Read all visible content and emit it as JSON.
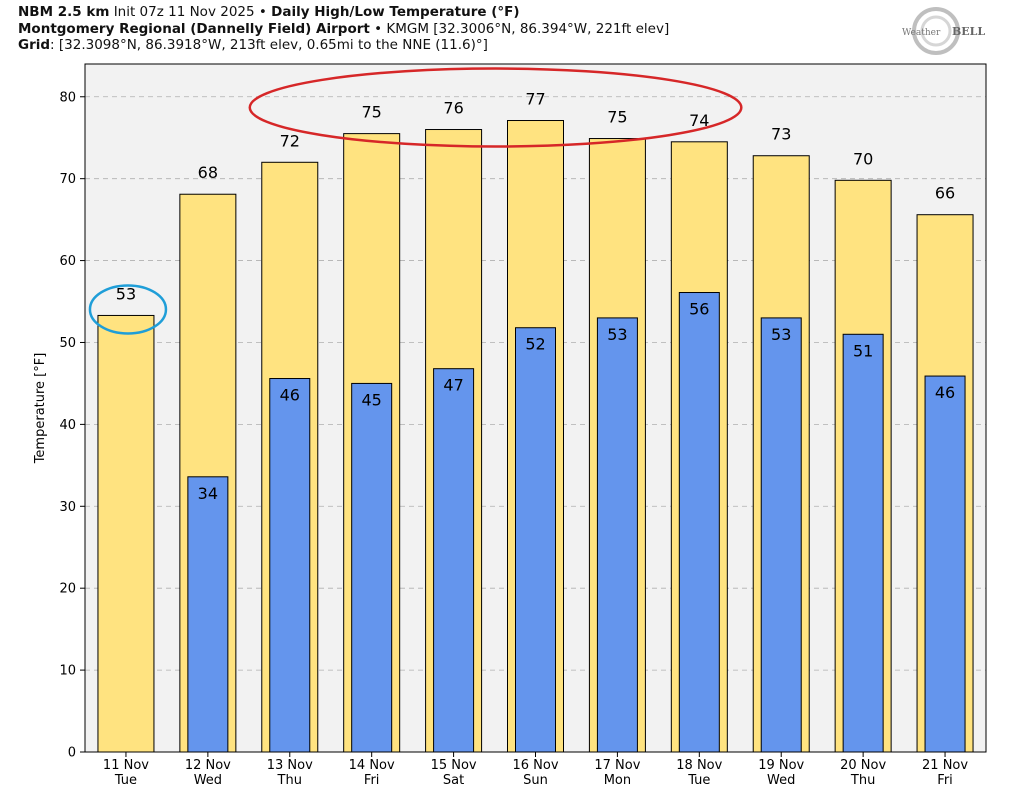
{
  "header": {
    "line1_bold": "NBM 2.5 km",
    "line1_init": "Init 07z 11 Nov 2025",
    "line1_sep": "•",
    "line1_title": "Daily High/Low Temperature (°F)",
    "line2_bold": "Montgomery Regional (Dannelly Field) Airport",
    "line2_sep": "•",
    "line2_rest": "KMGM [32.3006°N, 86.394°W, 221ft elev]",
    "line3_bold": "Grid",
    "line3_rest": ": [32.3098°N, 86.3918°W, 213ft elev, 0.65mi to the NNE (11.6)°]"
  },
  "logo": {
    "text_left": "Weather",
    "text_right": "BELL"
  },
  "colors": {
    "high": "#ffe380",
    "low": "#6495ed",
    "plot_bg": "#f2f2f2",
    "red_ellipse": "#d62728",
    "blue_ellipse": "#1f9ed8"
  },
  "chart_data": {
    "type": "bar",
    "title": "Daily High/Low Temperature (°F)",
    "ylabel": "Temperature [°F]",
    "xlabel": "",
    "ylim": [
      0,
      84
    ],
    "yticks": [
      0,
      10,
      20,
      30,
      40,
      50,
      60,
      70,
      80
    ],
    "categories": [
      {
        "date": "11 Nov",
        "day": "Tue"
      },
      {
        "date": "12 Nov",
        "day": "Wed"
      },
      {
        "date": "13 Nov",
        "day": "Thu"
      },
      {
        "date": "14 Nov",
        "day": "Fri"
      },
      {
        "date": "15 Nov",
        "day": "Sat"
      },
      {
        "date": "16 Nov",
        "day": "Sun"
      },
      {
        "date": "17 Nov",
        "day": "Mon"
      },
      {
        "date": "18 Nov",
        "day": "Tue"
      },
      {
        "date": "19 Nov",
        "day": "Wed"
      },
      {
        "date": "20 Nov",
        "day": "Thu"
      },
      {
        "date": "21 Nov",
        "day": "Fri"
      }
    ],
    "series": [
      {
        "name": "High",
        "values": [
          53.3,
          68.1,
          72.0,
          75.5,
          76.0,
          77.1,
          74.9,
          74.5,
          72.8,
          69.8,
          65.6
        ],
        "labels": [
          "53",
          "68",
          "72",
          "75",
          "76",
          "77",
          "75",
          "74",
          "73",
          "70",
          "66"
        ]
      },
      {
        "name": "Low",
        "values": [
          null,
          33.6,
          45.6,
          45.0,
          46.8,
          51.8,
          53.0,
          56.1,
          53.0,
          51.0,
          45.9
        ],
        "labels": [
          null,
          "34",
          "46",
          "45",
          "47",
          "52",
          "53",
          "56",
          "53",
          "51",
          "46"
        ]
      }
    ],
    "annotations": [
      {
        "type": "ellipse",
        "color": "red",
        "around": "highs 13 Nov – 18 Nov"
      },
      {
        "type": "ellipse",
        "color": "blue",
        "around": "high 11 Nov"
      }
    ]
  }
}
